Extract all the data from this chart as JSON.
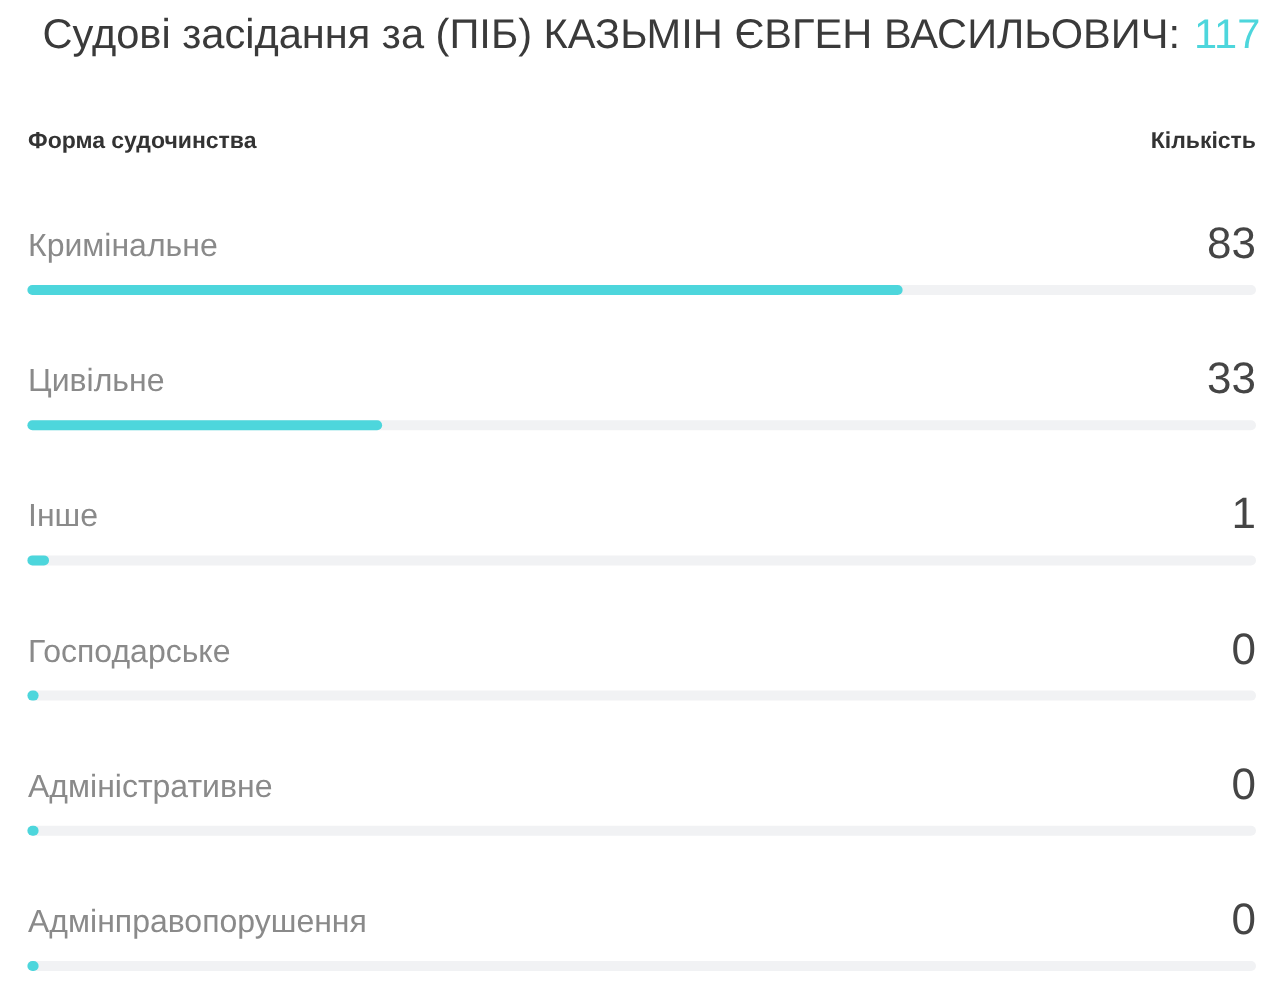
{
  "chart_data": {
    "type": "bar",
    "orientation": "horizontal",
    "title": "Судові засідання за (ПІБ) КАЗЬМІН ЄВГЕН ВАСИЛЬОВИЧ:",
    "subtitle": "117",
    "xlabel": "Кількість",
    "ylabel": "Форма судочинства",
    "categories": [
      "Кримінальне",
      "Цивільне",
      "Інше",
      "Господарське",
      "Адміністративне",
      "Адмінправопорушення"
    ],
    "values": [
      83,
      33,
      1,
      0,
      0,
      0
    ],
    "color": "#4dd6dc",
    "xlim": [
      0,
      117
    ],
    "data_labels": true,
    "tick_labels": "y"
  }
}
